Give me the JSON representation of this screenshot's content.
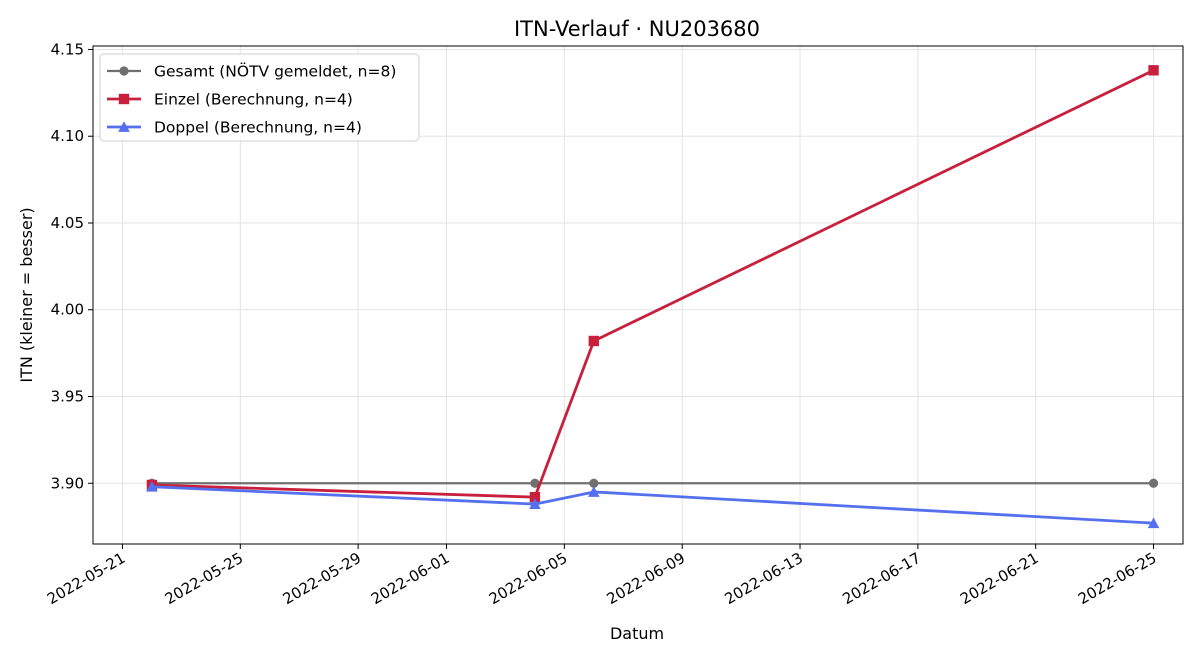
{
  "chart_data": {
    "type": "line",
    "title": "ITN-Verlauf · NU203680",
    "xlabel": "Datum",
    "ylabel": "ITN  (kleiner = besser)",
    "x_axis_type": "date",
    "xlim": [
      "2022-05-20",
      "2022-06-26"
    ],
    "ylim": [
      3.865,
      4.152
    ],
    "x_ticks": [
      "2022-05-21",
      "2022-05-25",
      "2022-05-29",
      "2022-06-01",
      "2022-06-05",
      "2022-06-09",
      "2022-06-13",
      "2022-06-17",
      "2022-06-21",
      "2022-06-25"
    ],
    "y_ticks": [
      "3.90",
      "3.95",
      "4.00",
      "4.05",
      "4.10",
      "4.15"
    ],
    "grid": true,
    "legend_position": "upper-left",
    "series": [
      {
        "name": "Gesamt (NÖTV gemeldet, n=8)",
        "color": "#707070",
        "marker": "circle",
        "points": [
          {
            "x": "2022-05-22",
            "y": 3.9
          },
          {
            "x": "2022-06-04",
            "y": 3.9
          },
          {
            "x": "2022-06-06",
            "y": 3.9
          },
          {
            "x": "2022-06-25",
            "y": 3.9
          }
        ]
      },
      {
        "name": "Einzel (Berechnung, n=4)",
        "color": "#c8203c",
        "marker": "square",
        "points": [
          {
            "x": "2022-05-22",
            "y": 3.899
          },
          {
            "x": "2022-06-04",
            "y": 3.892
          },
          {
            "x": "2022-06-06",
            "y": 3.982
          },
          {
            "x": "2022-06-25",
            "y": 4.138
          }
        ]
      },
      {
        "name": "Doppel (Berechnung, n=4)",
        "color": "#5470ee",
        "marker": "triangle",
        "points": [
          {
            "x": "2022-05-22",
            "y": 3.898
          },
          {
            "x": "2022-06-04",
            "y": 3.888
          },
          {
            "x": "2022-06-06",
            "y": 3.895
          },
          {
            "x": "2022-06-25",
            "y": 3.877
          }
        ]
      }
    ]
  }
}
